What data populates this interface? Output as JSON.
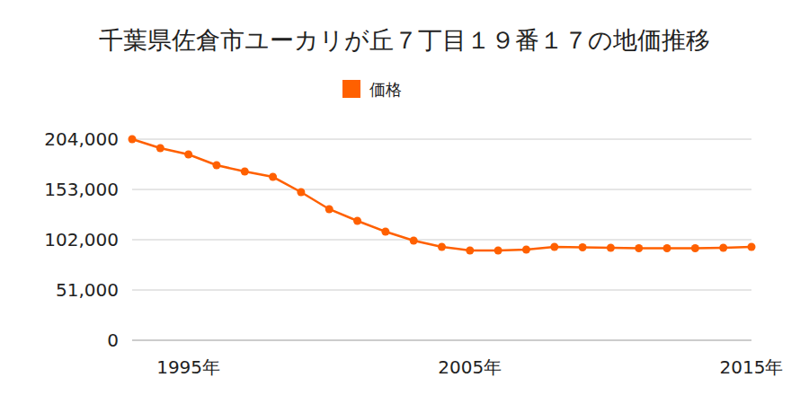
{
  "chart_data": {
    "type": "line",
    "title": "千葉県佐倉市ユーカリが丘７丁目１９番１７の地価推移",
    "categories": [
      null,
      null,
      "1995年",
      null,
      null,
      null,
      null,
      null,
      null,
      null,
      null,
      null,
      "2005年",
      null,
      null,
      null,
      null,
      null,
      null,
      null,
      null,
      null,
      "2015年"
    ],
    "series": [
      {
        "name": "価格",
        "color": "#ff6000",
        "marker": "circle",
        "values": [
          204000,
          194900,
          188500,
          177600,
          171200,
          165700,
          150300,
          133000,
          121100,
          110200,
          101100,
          94700,
          91100,
          91100,
          92000,
          94700,
          94300,
          93800,
          93400,
          93400,
          93400,
          93800,
          94700
        ]
      }
    ],
    "ylim": [
      0,
      204000
    ],
    "yticks": [
      0,
      {
        "value": 51000,
        "label": "51,000"
      },
      {
        "value": 102000,
        "label": "102,000"
      },
      {
        "value": 153000,
        "label": "153,000"
      },
      {
        "value": 204000,
        "label": "204,000"
      }
    ],
    "grid": true,
    "legend": "top"
  }
}
